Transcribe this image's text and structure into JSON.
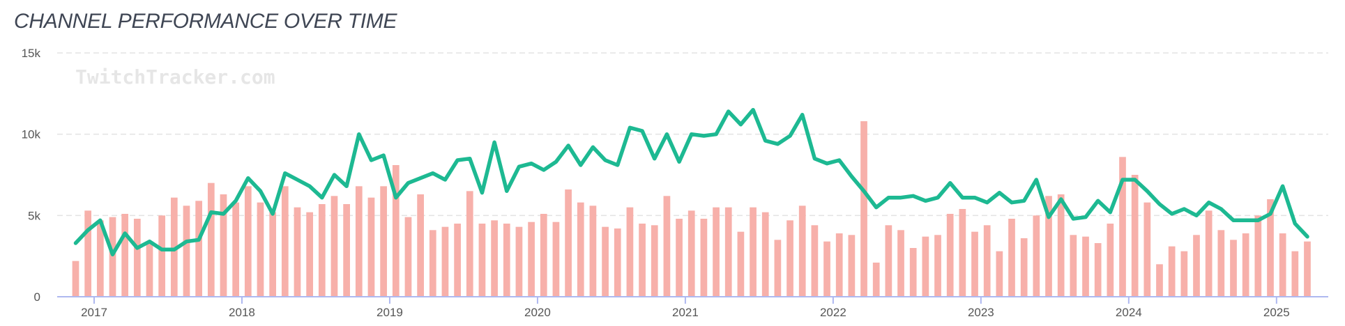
{
  "title": "CHANNEL PERFORMANCE OVER TIME",
  "watermark": "TwitchTracker.com",
  "colors": {
    "bars": "#f7b0aa",
    "line": "#1db992",
    "grid": "#e3e3e3",
    "axis": "#aeb8f0"
  },
  "chart_data": {
    "type": "bar+line",
    "title": "CHANNEL PERFORMANCE OVER TIME",
    "xlabel": "",
    "ylabel": "",
    "x_range": [
      2016.75,
      2025.35
    ],
    "ylim": [
      0,
      15000
    ],
    "y_ticks": [
      {
        "v": 0,
        "label": "0"
      },
      {
        "v": 5000,
        "label": "5k"
      },
      {
        "v": 10000,
        "label": "10k"
      },
      {
        "v": 15000,
        "label": "15k"
      }
    ],
    "x_ticks": [
      {
        "v": 2017,
        "label": "2017"
      },
      {
        "v": 2018,
        "label": "2018"
      },
      {
        "v": 2019,
        "label": "2019"
      },
      {
        "v": 2020,
        "label": "2020"
      },
      {
        "v": 2021,
        "label": "2021"
      },
      {
        "v": 2022,
        "label": "2022"
      },
      {
        "v": 2023,
        "label": "2023"
      },
      {
        "v": 2024,
        "label": "2024"
      },
      {
        "v": 2025,
        "label": "2025"
      }
    ],
    "grid": true,
    "legend": "none",
    "month_start": "2016-11",
    "series": [
      {
        "type": "bar",
        "values": [
          2200,
          5300,
          4700,
          4900,
          5100,
          4800,
          3300,
          5000,
          6100,
          5600,
          5900,
          7000,
          6300,
          5800,
          6800,
          5800,
          5200,
          6800,
          5500,
          5200,
          5700,
          6200,
          5700,
          6800,
          6100,
          6800,
          8100,
          4900,
          6300,
          4100,
          4300,
          4500,
          6500,
          4500,
          4700,
          4500,
          4300,
          4600,
          5100,
          4600,
          6600,
          5800,
          5600,
          4300,
          4200,
          5500,
          4500,
          4400,
          6200,
          4800,
          5300,
          4800,
          5500,
          5500,
          4000,
          5500,
          5200,
          3500,
          4700,
          5600,
          4400,
          3400,
          3900,
          3800,
          10800,
          2100,
          4400,
          4100,
          3000,
          3700,
          3800,
          5100,
          5400,
          4000,
          4400,
          2800,
          4800,
          3600,
          5000,
          6200,
          6300,
          3800,
          3700,
          3300,
          4500,
          8600,
          7500,
          5800,
          2000,
          3100,
          2800,
          3800,
          5300,
          4100,
          3500,
          3900,
          5000,
          6000,
          3900,
          2800,
          3400
        ]
      },
      {
        "type": "line",
        "values": [
          3300,
          4100,
          4700,
          2600,
          3900,
          3000,
          3400,
          2900,
          2900,
          3400,
          3500,
          5200,
          5100,
          5900,
          7300,
          6500,
          5100,
          7600,
          7200,
          6800,
          6100,
          7500,
          6800,
          10000,
          8400,
          8700,
          6100,
          7000,
          7300,
          7600,
          7200,
          8400,
          8500,
          6400,
          9500,
          6500,
          8000,
          8200,
          7800,
          8300,
          9300,
          8100,
          9200,
          8400,
          8100,
          10400,
          10200,
          8500,
          10000,
          8300,
          10000,
          9900,
          10000,
          11400,
          10600,
          11500,
          9600,
          9400,
          9900,
          11200,
          8500,
          8200,
          8400,
          7400,
          6500,
          5500,
          6100,
          6100,
          6200,
          5900,
          6100,
          7000,
          6100,
          6100,
          5800,
          6400,
          5800,
          5900,
          7200,
          4900,
          6000,
          4800,
          4900,
          5900,
          5200,
          7200,
          7200,
          6500,
          5700,
          5100,
          5400,
          5000,
          5800,
          5400,
          4700,
          4700,
          4700,
          5100,
          6800,
          4500,
          3700
        ]
      }
    ]
  }
}
